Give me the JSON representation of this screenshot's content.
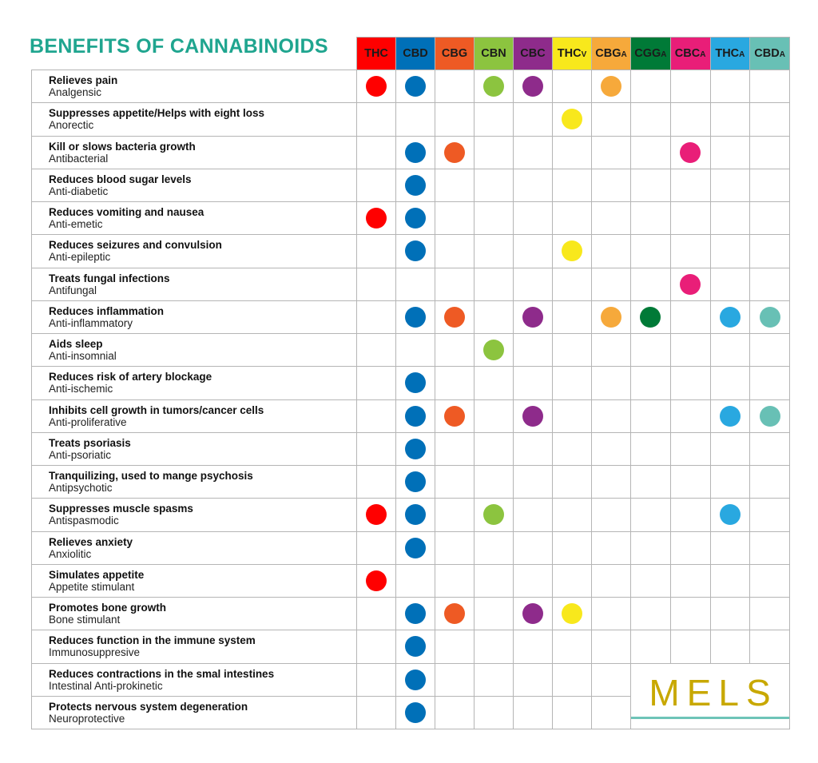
{
  "title": "BENEFITS OF CANNABINOIDS",
  "columns": [
    {
      "main": "THC",
      "sub": "",
      "color": "#ff0000"
    },
    {
      "main": "CBD",
      "sub": "",
      "color": "#0070b8"
    },
    {
      "main": "CBG",
      "sub": "",
      "color": "#ee5a24"
    },
    {
      "main": "CBN",
      "sub": "",
      "color": "#8cc43f"
    },
    {
      "main": "CBC",
      "sub": "",
      "color": "#8e2b8b"
    },
    {
      "main": "THC",
      "sub": "V",
      "color": "#f8e81c"
    },
    {
      "main": "CBG",
      "sub": "A",
      "color": "#f6a93b"
    },
    {
      "main": "CGG",
      "sub": "A",
      "color": "#007a37"
    },
    {
      "main": "CBC",
      "sub": "A",
      "color": "#e91e78"
    },
    {
      "main": "THC",
      "sub": "A",
      "color": "#29a8e0"
    },
    {
      "main": "CBD",
      "sub": "A",
      "color": "#68c0b5"
    }
  ],
  "rows": [
    {
      "benefit": "Relieves pain",
      "term": "Analgensic",
      "marks": [
        "THC",
        "CBD",
        "CBN",
        "CBC",
        "CBGA"
      ]
    },
    {
      "benefit": "Suppresses appetite/Helps with eight loss",
      "term": "Anorectic",
      "marks": [
        "THCV"
      ]
    },
    {
      "benefit": "Kill or slows bacteria growth",
      "term": "Antibacterial",
      "marks": [
        "CBD",
        "CBG",
        "CBCA"
      ]
    },
    {
      "benefit": "Reduces blood sugar levels",
      "term": "Anti-diabetic",
      "marks": [
        "CBD"
      ]
    },
    {
      "benefit": "Reduces vomiting and nausea",
      "term": "Anti-emetic",
      "marks": [
        "THC",
        "CBD"
      ]
    },
    {
      "benefit": "Reduces seizures and convulsion",
      "term": "Anti-epileptic",
      "marks": [
        "CBD",
        "THCV"
      ]
    },
    {
      "benefit": "Treats fungal infections",
      "term": "Antifungal",
      "marks": [
        "CBCA"
      ]
    },
    {
      "benefit": "Reduces inflammation",
      "term": "Anti-inflammatory",
      "marks": [
        "CBD",
        "CBG",
        "CBC",
        "CBGA",
        "CGGA",
        "THCA",
        "CBDA"
      ]
    },
    {
      "benefit": "Aids sleep",
      "term": "Anti-insomnial",
      "marks": [
        "CBN"
      ]
    },
    {
      "benefit": "Reduces risk of artery blockage",
      "term": "Anti-ischemic",
      "marks": [
        "CBD"
      ]
    },
    {
      "benefit": "Inhibits cell growth in tumors/cancer cells",
      "term": "Anti-proliferative",
      "marks": [
        "CBD",
        "CBG",
        "CBC",
        "THCA",
        "CBDA"
      ]
    },
    {
      "benefit": "Treats psoriasis",
      "term": "Anti-psoriatic",
      "marks": [
        "CBD"
      ]
    },
    {
      "benefit": "Tranquilizing, used to mange psychosis",
      "term": "Antipsychotic",
      "marks": [
        "CBD"
      ]
    },
    {
      "benefit": "Suppresses muscle spasms",
      "term": "Antispasmodic",
      "marks": [
        "THC",
        "CBD",
        "CBN",
        "THCA"
      ]
    },
    {
      "benefit": "Relieves anxiety",
      "term": "Anxiolitic",
      "marks": [
        "CBD"
      ]
    },
    {
      "benefit": "Simulates appetite",
      "term": "Appetite stimulant",
      "marks": [
        "THC"
      ]
    },
    {
      "benefit": "Promotes bone growth",
      "term": "Bone stimulant",
      "marks": [
        "CBD",
        "CBG",
        "CBC",
        "THCV"
      ]
    },
    {
      "benefit": "Reduces function in the immune system",
      "term": "Immunosuppresive",
      "marks": [
        "CBD"
      ]
    },
    {
      "benefit": "Reduces contractions in the smal intestines",
      "term": "Intestinal Anti-prokinetic",
      "marks": [
        "CBD"
      ]
    },
    {
      "benefit": "Protects nervous system degeneration",
      "term": "Neuroprotective",
      "marks": [
        "CBD"
      ]
    }
  ],
  "logo": {
    "text": "MELS"
  }
}
